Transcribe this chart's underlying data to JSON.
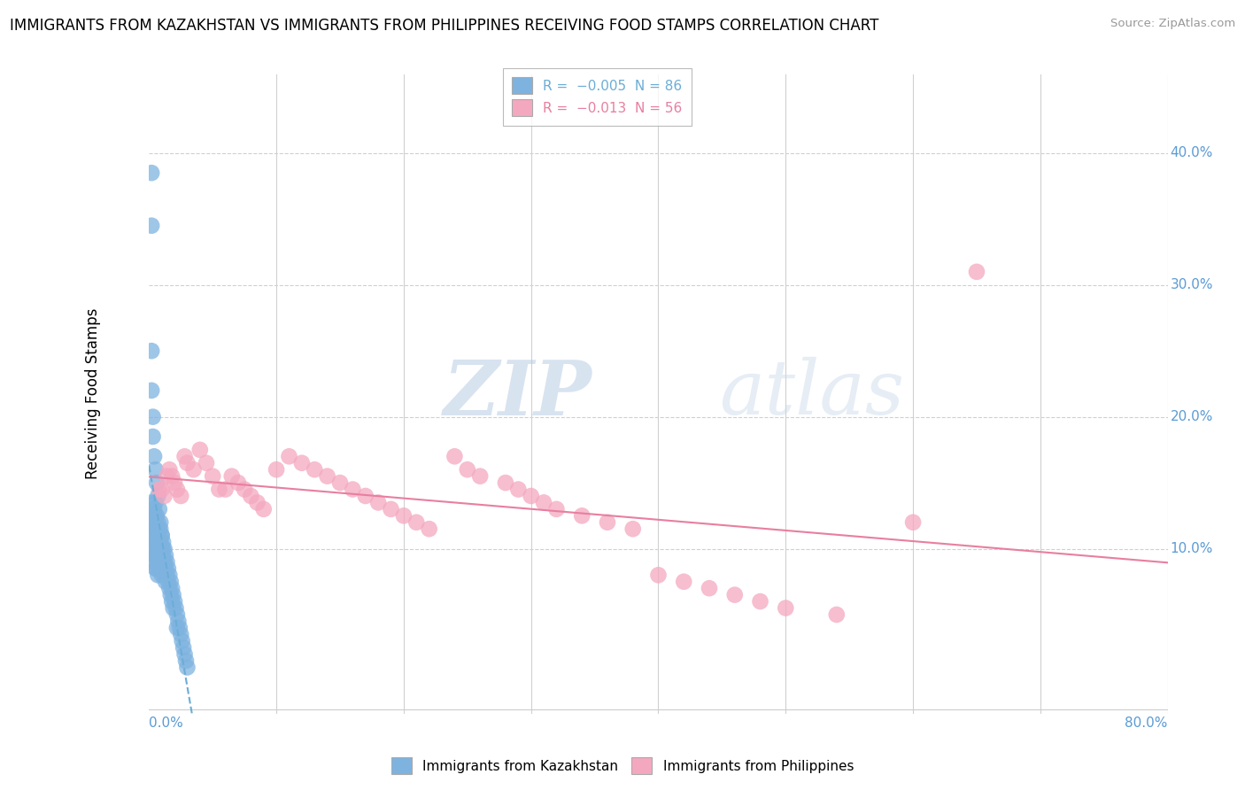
{
  "title": "IMMIGRANTS FROM KAZAKHSTAN VS IMMIGRANTS FROM PHILIPPINES RECEIVING FOOD STAMPS CORRELATION CHART",
  "source": "Source: ZipAtlas.com",
  "ylabel": "Receiving Food Stamps",
  "legend_r1": "R =  -0.005  N = 86",
  "legend_r2": "R =  -0.013  N = 56",
  "legend_label1": "Immigrants from Kazakhstan",
  "legend_label2": "Immigrants from Philippines",
  "kaz_color": "#7EB3E0",
  "phil_color": "#F4A8C0",
  "kaz_trend_color": "#6BADD6",
  "phil_trend_color": "#E87FA0",
  "background_color": "#FFFFFF",
  "grid_color": "#D0D0D0",
  "watermark_zip": "ZIP",
  "watermark_atlas": "atlas",
  "kaz_R": -0.005,
  "kaz_N": 86,
  "phil_R": -0.013,
  "phil_N": 56,
  "xlim": [
    0.0,
    0.8
  ],
  "ylim": [
    -0.025,
    0.46
  ],
  "right_tick_color": "#5B9BD5",
  "kaz_x": [
    0.002,
    0.002,
    0.002,
    0.003,
    0.003,
    0.003,
    0.003,
    0.004,
    0.004,
    0.004,
    0.004,
    0.004,
    0.005,
    0.005,
    0.005,
    0.005,
    0.005,
    0.005,
    0.006,
    0.006,
    0.006,
    0.006,
    0.006,
    0.007,
    0.007,
    0.007,
    0.007,
    0.007,
    0.008,
    0.008,
    0.008,
    0.008,
    0.009,
    0.009,
    0.009,
    0.009,
    0.01,
    0.01,
    0.01,
    0.01,
    0.011,
    0.011,
    0.011,
    0.012,
    0.012,
    0.012,
    0.013,
    0.013,
    0.013,
    0.014,
    0.014,
    0.015,
    0.015,
    0.016,
    0.016,
    0.017,
    0.017,
    0.018,
    0.018,
    0.019,
    0.019,
    0.02,
    0.021,
    0.022,
    0.022,
    0.023,
    0.024,
    0.025,
    0.026,
    0.027,
    0.028,
    0.029,
    0.03,
    0.002,
    0.002,
    0.003,
    0.003,
    0.004,
    0.005,
    0.006,
    0.007,
    0.008,
    0.009,
    0.01,
    0.011,
    0.012
  ],
  "kaz_y": [
    0.385,
    0.345,
    0.135,
    0.125,
    0.115,
    0.105,
    0.095,
    0.13,
    0.12,
    0.11,
    0.1,
    0.09,
    0.135,
    0.125,
    0.115,
    0.105,
    0.095,
    0.085,
    0.125,
    0.115,
    0.105,
    0.095,
    0.085,
    0.12,
    0.11,
    0.1,
    0.09,
    0.08,
    0.115,
    0.105,
    0.095,
    0.085,
    0.115,
    0.105,
    0.095,
    0.085,
    0.11,
    0.1,
    0.09,
    0.08,
    0.105,
    0.095,
    0.085,
    0.1,
    0.09,
    0.08,
    0.095,
    0.085,
    0.075,
    0.09,
    0.08,
    0.085,
    0.075,
    0.08,
    0.07,
    0.075,
    0.065,
    0.07,
    0.06,
    0.065,
    0.055,
    0.06,
    0.055,
    0.05,
    0.04,
    0.045,
    0.04,
    0.035,
    0.03,
    0.025,
    0.02,
    0.015,
    0.01,
    0.25,
    0.22,
    0.2,
    0.185,
    0.17,
    0.16,
    0.15,
    0.14,
    0.13,
    0.12,
    0.11,
    0.1,
    0.09
  ],
  "phil_x": [
    0.008,
    0.01,
    0.012,
    0.014,
    0.016,
    0.018,
    0.02,
    0.022,
    0.025,
    0.028,
    0.03,
    0.035,
    0.04,
    0.045,
    0.05,
    0.055,
    0.06,
    0.065,
    0.07,
    0.075,
    0.08,
    0.085,
    0.09,
    0.1,
    0.11,
    0.12,
    0.13,
    0.14,
    0.15,
    0.16,
    0.17,
    0.18,
    0.19,
    0.2,
    0.21,
    0.22,
    0.24,
    0.25,
    0.26,
    0.28,
    0.29,
    0.3,
    0.31,
    0.32,
    0.34,
    0.36,
    0.38,
    0.4,
    0.42,
    0.44,
    0.46,
    0.48,
    0.5,
    0.54,
    0.6,
    0.65
  ],
  "phil_y": [
    0.145,
    0.145,
    0.14,
    0.155,
    0.16,
    0.155,
    0.15,
    0.145,
    0.14,
    0.17,
    0.165,
    0.16,
    0.175,
    0.165,
    0.155,
    0.145,
    0.145,
    0.155,
    0.15,
    0.145,
    0.14,
    0.135,
    0.13,
    0.16,
    0.17,
    0.165,
    0.16,
    0.155,
    0.15,
    0.145,
    0.14,
    0.135,
    0.13,
    0.125,
    0.12,
    0.115,
    0.17,
    0.16,
    0.155,
    0.15,
    0.145,
    0.14,
    0.135,
    0.13,
    0.125,
    0.12,
    0.115,
    0.08,
    0.075,
    0.07,
    0.065,
    0.06,
    0.055,
    0.05,
    0.12,
    0.31
  ]
}
